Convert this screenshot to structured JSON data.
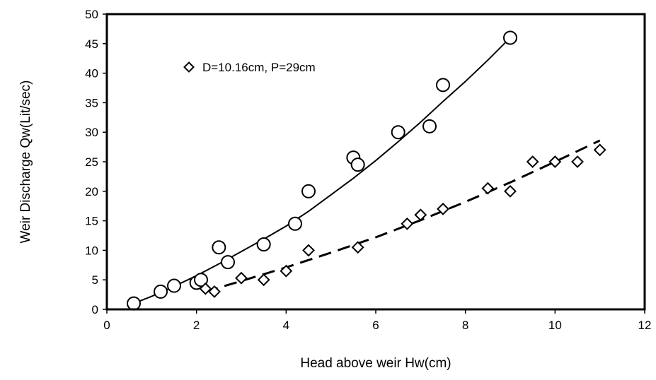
{
  "chart_data": {
    "type": "scatter",
    "title": "",
    "xlabel": "Head above weir  Hw(cm)",
    "ylabel": "Weir Discharge Qw(Lit/sec)",
    "xlim": [
      0,
      12
    ],
    "ylim": [
      0,
      50
    ],
    "xticks": [
      0,
      2,
      4,
      6,
      8,
      10,
      12
    ],
    "yticks": [
      0,
      5,
      10,
      15,
      20,
      25,
      30,
      35,
      40,
      45,
      50
    ],
    "grid": false,
    "legend_position": "top-left",
    "series": [
      {
        "marker": "circle",
        "trendline": "solid",
        "points": [
          [
            0.6,
            1
          ],
          [
            1.2,
            3
          ],
          [
            1.5,
            4
          ],
          [
            2.0,
            4.5
          ],
          [
            2.1,
            5
          ],
          [
            2.5,
            10.5
          ],
          [
            2.7,
            8
          ],
          [
            3.5,
            11
          ],
          [
            4.2,
            14.5
          ],
          [
            4.5,
            20
          ],
          [
            5.5,
            25.7
          ],
          [
            5.6,
            24.5
          ],
          [
            6.5,
            30
          ],
          [
            7.2,
            31
          ],
          [
            7.5,
            38
          ],
          [
            9.0,
            46
          ]
        ],
        "fit_points": [
          [
            0.6,
            1.0
          ],
          [
            1.0,
            2.2
          ],
          [
            1.5,
            3.9
          ],
          [
            2.0,
            5.7
          ],
          [
            2.5,
            7.7
          ],
          [
            3.0,
            9.8
          ],
          [
            3.5,
            11.9
          ],
          [
            4.0,
            14.1
          ],
          [
            4.5,
            16.6
          ],
          [
            5.0,
            19.4
          ],
          [
            5.5,
            22.2
          ],
          [
            6.0,
            25.2
          ],
          [
            6.5,
            28.4
          ],
          [
            7.0,
            31.7
          ],
          [
            7.5,
            35.2
          ],
          [
            8.0,
            38.6
          ],
          [
            8.5,
            42.2
          ],
          [
            9.0,
            46.0
          ]
        ]
      },
      {
        "name": "D=10.16cm, P=29cm",
        "marker": "diamond",
        "trendline": "dashed",
        "points": [
          [
            2.2,
            3.5
          ],
          [
            2.4,
            3
          ],
          [
            3.0,
            5.3
          ],
          [
            3.5,
            5
          ],
          [
            4.0,
            6.5
          ],
          [
            4.5,
            10
          ],
          [
            5.6,
            10.5
          ],
          [
            6.7,
            14.5
          ],
          [
            7.0,
            16
          ],
          [
            7.5,
            17
          ],
          [
            8.5,
            20.5
          ],
          [
            9.0,
            20
          ],
          [
            9.5,
            25
          ],
          [
            10.0,
            25
          ],
          [
            10.5,
            25
          ],
          [
            11.0,
            27
          ]
        ],
        "fit_points": [
          [
            2.2,
            3.0
          ],
          [
            3.0,
            4.8
          ],
          [
            4.0,
            7.1
          ],
          [
            5.0,
            9.6
          ],
          [
            6.0,
            12.2
          ],
          [
            7.0,
            15.1
          ],
          [
            8.0,
            18.2
          ],
          [
            9.0,
            21.5
          ],
          [
            10.0,
            25.0
          ],
          [
            11.0,
            28.6
          ]
        ]
      }
    ]
  }
}
